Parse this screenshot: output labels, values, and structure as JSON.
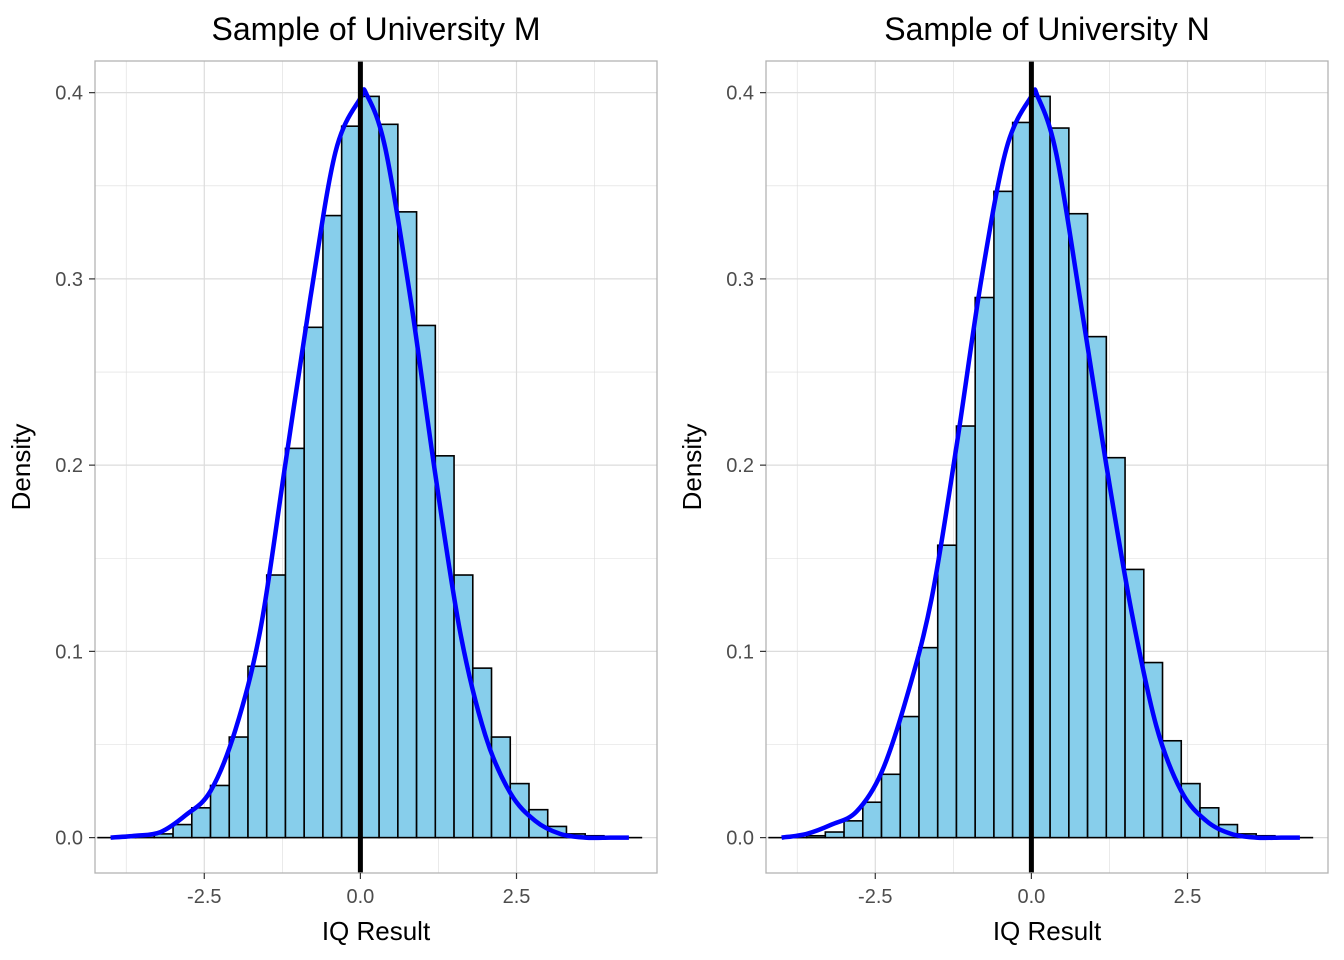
{
  "colors": {
    "bar_fill": "#87ceeb",
    "bar_stroke": "#000000",
    "density_curve": "#0000ff",
    "mean_line": "#000000",
    "grid": "#dcdcdc",
    "panel_border": "#b3b3b3"
  },
  "chart_data": [
    {
      "type": "bar",
      "title": "Sample of University M",
      "xlabel": "IQ Result",
      "ylabel": "Density",
      "xlim": [
        -4.25,
        4.75
      ],
      "ylim": [
        -0.019,
        0.417
      ],
      "x_ticks": [
        -2.5,
        0,
        2.5
      ],
      "x_tick_labels": [
        "-2.5",
        "0.0",
        "2.5"
      ],
      "y_ticks": [
        0,
        0.1,
        0.2,
        0.3,
        0.4
      ],
      "y_tick_labels": [
        "0.0",
        "0.1",
        "0.2",
        "0.3",
        "0.4"
      ],
      "grid": true,
      "bin_width": 0.3,
      "bins_left": [
        -4.2,
        -3.9,
        -3.6,
        -3.3,
        -3.0,
        -2.7,
        -2.4,
        -2.1,
        -1.8,
        -1.5,
        -1.2,
        -0.9,
        -0.6,
        -0.3,
        0.0,
        0.3,
        0.6,
        0.9,
        1.2,
        1.5,
        1.8,
        2.1,
        2.4,
        2.7,
        3.0,
        3.3,
        3.6,
        3.9,
        4.2
      ],
      "values": [
        0.0,
        0.0,
        0.001,
        0.002,
        0.007,
        0.016,
        0.028,
        0.054,
        0.092,
        0.141,
        0.209,
        0.274,
        0.334,
        0.382,
        0.398,
        0.383,
        0.336,
        0.275,
        0.205,
        0.141,
        0.091,
        0.054,
        0.029,
        0.015,
        0.006,
        0.002,
        0.001,
        0.0,
        0.0
      ],
      "density_curve": {
        "x": [
          -4.0,
          -3.6,
          -3.2,
          -2.8,
          -2.4,
          -2.0,
          -1.6,
          -1.2,
          -0.8,
          -0.4,
          0.0,
          0.1,
          0.4,
          0.8,
          1.2,
          1.6,
          2.0,
          2.4,
          2.8,
          3.2,
          3.6,
          4.0,
          4.3
        ],
        "y": [
          0.0,
          0.001,
          0.003,
          0.012,
          0.025,
          0.058,
          0.112,
          0.201,
          0.29,
          0.368,
          0.397,
          0.399,
          0.37,
          0.29,
          0.195,
          0.11,
          0.055,
          0.024,
          0.009,
          0.002,
          0.0,
          0.0,
          0.0
        ]
      },
      "mean_line_x": 0.0
    },
    {
      "type": "bar",
      "title": "Sample of University N",
      "xlabel": "IQ Result",
      "ylabel": "Density",
      "xlim": [
        -4.25,
        4.75
      ],
      "ylim": [
        -0.019,
        0.417
      ],
      "x_ticks": [
        -2.5,
        0,
        2.5
      ],
      "x_tick_labels": [
        "-2.5",
        "0.0",
        "2.5"
      ],
      "y_ticks": [
        0,
        0.1,
        0.2,
        0.3,
        0.4
      ],
      "y_tick_labels": [
        "0.0",
        "0.1",
        "0.2",
        "0.3",
        "0.4"
      ],
      "grid": true,
      "bin_width": 0.3,
      "bins_left": [
        -4.2,
        -3.9,
        -3.6,
        -3.3,
        -3.0,
        -2.7,
        -2.4,
        -2.1,
        -1.8,
        -1.5,
        -1.2,
        -0.9,
        -0.6,
        -0.3,
        0.0,
        0.3,
        0.6,
        0.9,
        1.2,
        1.5,
        1.8,
        2.1,
        2.4,
        2.7,
        3.0,
        3.3,
        3.6,
        3.9,
        4.2
      ],
      "values": [
        0.0,
        0.0,
        0.001,
        0.003,
        0.009,
        0.019,
        0.034,
        0.065,
        0.102,
        0.157,
        0.221,
        0.29,
        0.347,
        0.384,
        0.398,
        0.381,
        0.335,
        0.269,
        0.204,
        0.144,
        0.094,
        0.052,
        0.029,
        0.016,
        0.007,
        0.002,
        0.001,
        0.0,
        0.0
      ],
      "density_curve": {
        "x": [
          -4.0,
          -3.6,
          -3.2,
          -2.8,
          -2.4,
          -2.0,
          -1.6,
          -1.2,
          -0.8,
          -0.4,
          0.0,
          0.1,
          0.4,
          0.8,
          1.2,
          1.6,
          2.0,
          2.4,
          2.8,
          3.2,
          3.6,
          4.0,
          4.3
        ],
        "y": [
          0.0,
          0.002,
          0.007,
          0.014,
          0.035,
          0.075,
          0.128,
          0.21,
          0.3,
          0.37,
          0.398,
          0.398,
          0.367,
          0.285,
          0.2,
          0.122,
          0.06,
          0.025,
          0.009,
          0.002,
          0.0,
          0.0,
          0.0
        ]
      },
      "mean_line_x": 0.0
    }
  ]
}
